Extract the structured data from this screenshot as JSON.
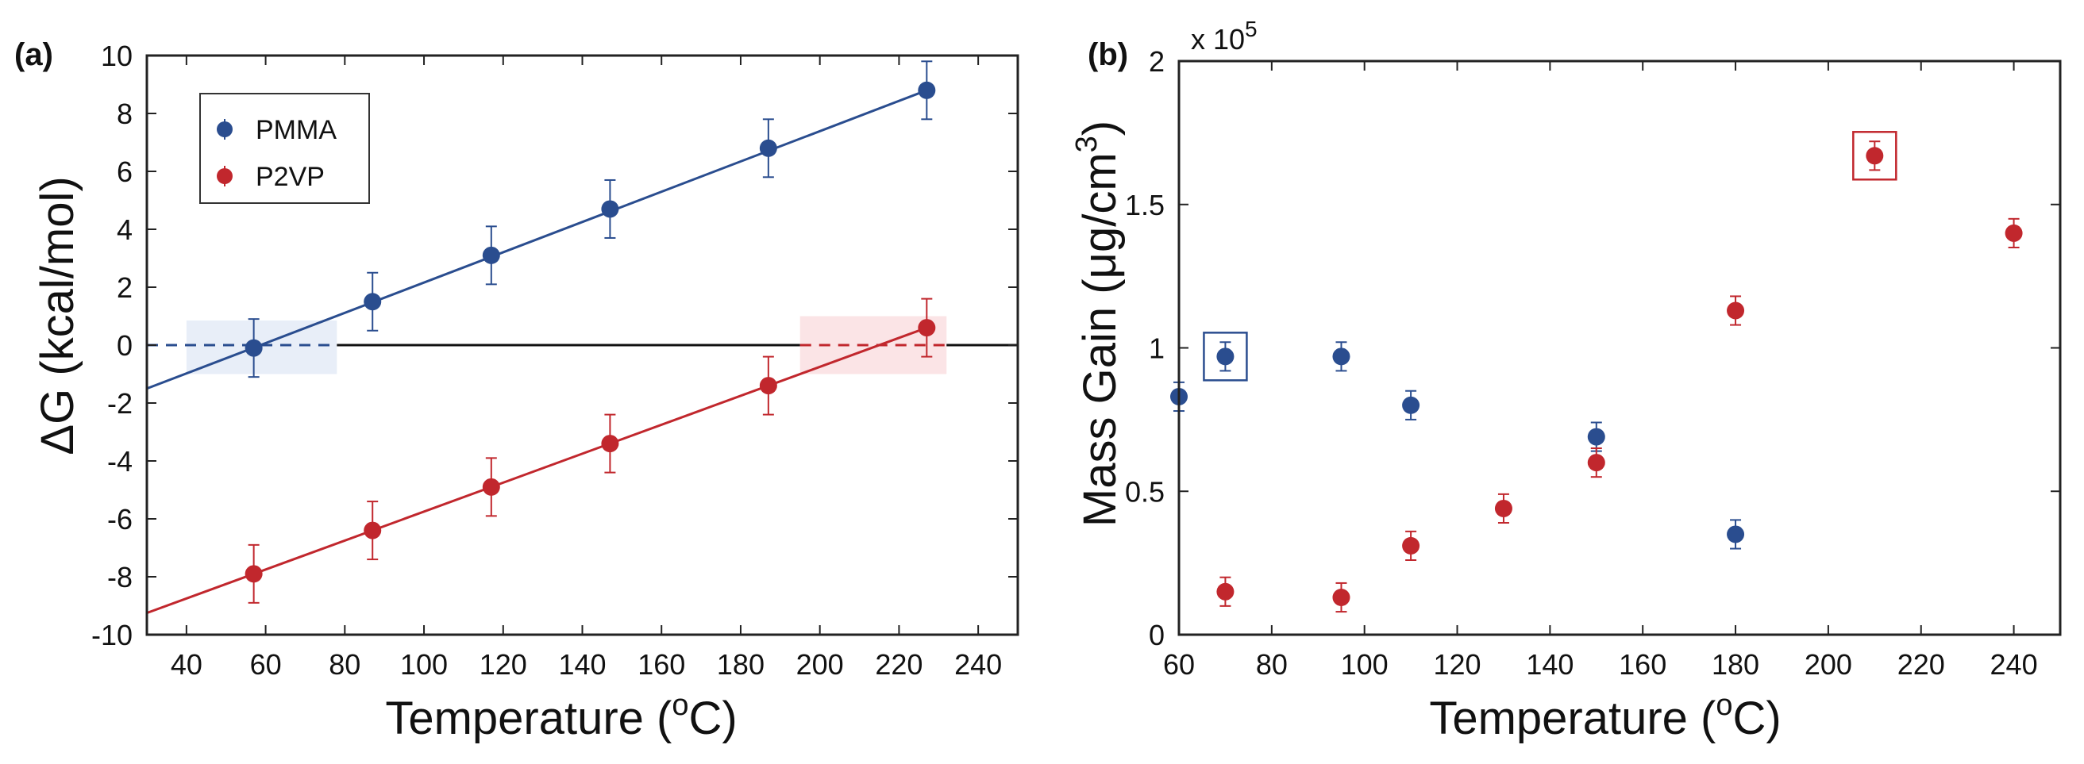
{
  "chart_data": [
    {
      "panel_label": "(a)",
      "type": "line",
      "xlabel_main": "Temperature (",
      "xlabel_sup": "o",
      "xlabel_end": "C)",
      "ylabel": "ΔG (kcal/mol)",
      "xlim": [
        30,
        250
      ],
      "ylim": [
        -10,
        10
      ],
      "xticks": [
        40,
        60,
        80,
        100,
        120,
        140,
        160,
        180,
        200,
        220,
        240
      ],
      "yticks": [
        -10,
        -8,
        -6,
        -4,
        -2,
        0,
        2,
        4,
        6,
        8,
        10
      ],
      "zero_line": true,
      "legend_position": "top-left",
      "series": [
        {
          "name": "PMMA",
          "color": "#2a4d8f",
          "x": [
            57,
            87,
            117,
            147,
            187,
            227
          ],
          "y": [
            -0.1,
            1.5,
            3.1,
            4.7,
            6.8,
            8.8
          ],
          "err": [
            1.0,
            1.0,
            1.0,
            1.0,
            1.0,
            1.0
          ],
          "fit": {
            "x0": 30,
            "y0": -1.5,
            "x1": 227,
            "y1": 8.8
          },
          "dashed": {
            "x0": 30,
            "x1": 78,
            "y": 0
          },
          "highlight": {
            "x0": 40,
            "x1": 78,
            "y0": -1.0,
            "y1": 0.85,
            "color": "#e8eef8"
          }
        },
        {
          "name": "P2VP",
          "color": "#c1272d",
          "x": [
            57,
            87,
            117,
            147,
            187,
            227
          ],
          "y": [
            -7.9,
            -6.4,
            -4.9,
            -3.4,
            -1.4,
            0.6
          ],
          "err": [
            1.0,
            1.0,
            1.0,
            1.0,
            1.0,
            1.0
          ],
          "fit": {
            "x0": 30,
            "y0": -9.25,
            "x1": 227,
            "y1": 0.6
          },
          "dashed": {
            "x0": 195,
            "x1": 232,
            "y": 0
          },
          "highlight": {
            "x0": 195,
            "x1": 232,
            "y0": -1.0,
            "y1": 1.0,
            "color": "#fbe4e6"
          }
        }
      ]
    },
    {
      "panel_label": "(b)",
      "type": "scatter",
      "xlabel_main": "Temperature (",
      "xlabel_sup": "o",
      "xlabel_end": "C)",
      "ylabel_main": "Mass Gain (μg/cm",
      "ylabel_sup": "3",
      "ylabel_end": ")",
      "multiplier_base": "x 10",
      "multiplier_exp": "5",
      "xlim": [
        60,
        250
      ],
      "ylim": [
        0,
        2
      ],
      "xticks": [
        60,
        80,
        100,
        120,
        140,
        160,
        180,
        200,
        220,
        240
      ],
      "ytick_values": [
        0,
        0.5,
        1,
        1.5,
        2
      ],
      "ytick_labels": [
        "0",
        "0.5",
        "1",
        "1.5",
        "2"
      ],
      "series": [
        {
          "name": "PMMA",
          "color": "#2a4d8f",
          "x": [
            60,
            70,
            95,
            110,
            150,
            180
          ],
          "y": [
            0.83,
            0.97,
            0.97,
            0.8,
            0.69,
            0.35
          ],
          "err": [
            0.05,
            0.05,
            0.05,
            0.05,
            0.05,
            0.05
          ],
          "boxed_index": 1
        },
        {
          "name": "P2VP",
          "color": "#c1272d",
          "x": [
            70,
            95,
            110,
            130,
            150,
            180,
            210,
            240
          ],
          "y": [
            0.15,
            0.13,
            0.31,
            0.44,
            0.6,
            1.13,
            1.67,
            1.4
          ],
          "err": [
            0.05,
            0.05,
            0.05,
            0.05,
            0.05,
            0.05,
            0.05,
            0.05
          ],
          "boxed_index": 6
        }
      ]
    }
  ]
}
